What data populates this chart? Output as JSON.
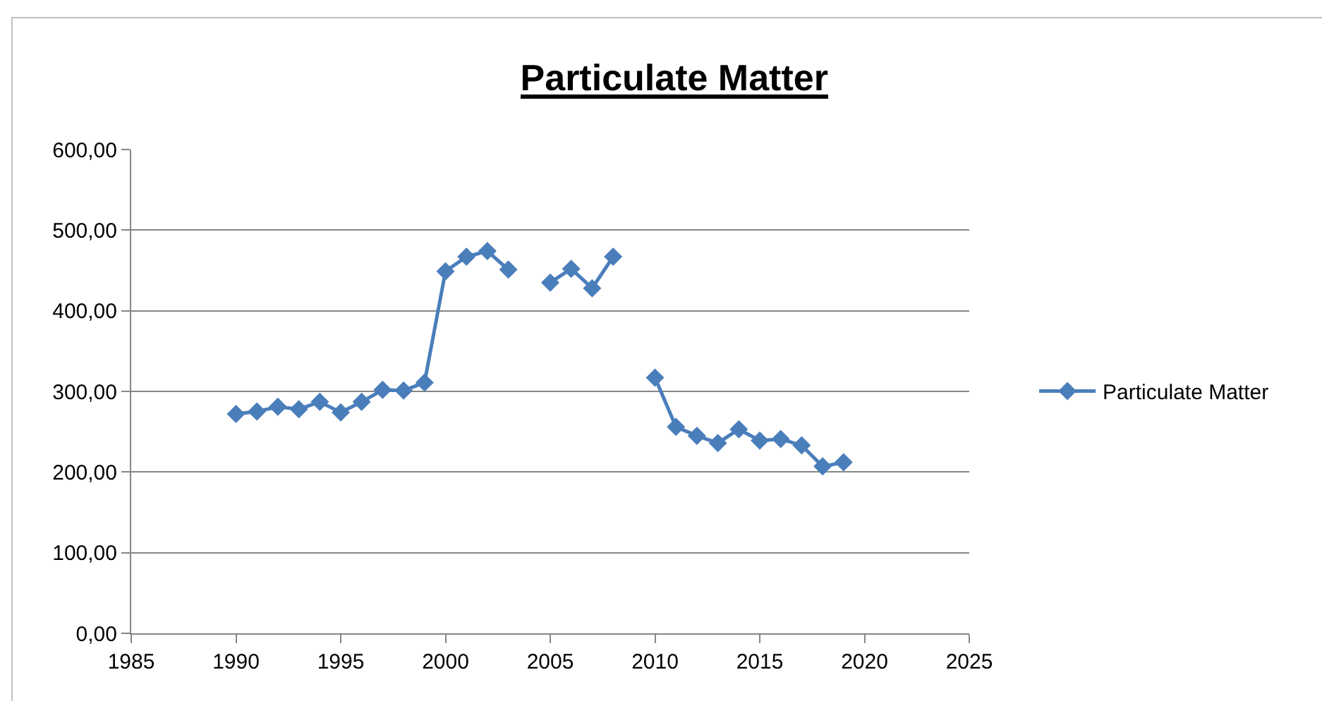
{
  "chart_data": {
    "type": "line",
    "title": "Particulate Matter",
    "x": [
      1990,
      1991,
      1992,
      1993,
      1994,
      1995,
      1996,
      1997,
      1998,
      1999,
      2000,
      2001,
      2002,
      2003,
      2004,
      2005,
      2006,
      2007,
      2008,
      2009,
      2010,
      2011,
      2012,
      2013,
      2014,
      2015,
      2016,
      2017,
      2018,
      2019
    ],
    "series": [
      {
        "name": "Particulate Matter",
        "color": "#4a7ebb",
        "values": [
          272,
          275,
          281,
          278,
          287,
          274,
          287,
          302,
          301,
          311,
          449,
          467,
          474,
          451,
          null,
          435,
          452,
          428,
          467,
          null,
          317,
          256,
          245,
          236,
          253,
          239,
          241,
          233,
          207,
          212
        ]
      }
    ],
    "xlim": [
      1985,
      2025
    ],
    "xticks": [
      1985,
      1990,
      1995,
      2000,
      2005,
      2010,
      2015,
      2020,
      2025
    ],
    "ylim": [
      0,
      600
    ],
    "yticks": [
      {
        "value": 0,
        "label": "0,00"
      },
      {
        "value": 100,
        "label": "100,00"
      },
      {
        "value": 200,
        "label": "200,00"
      },
      {
        "value": 300,
        "label": "300,00"
      },
      {
        "value": 400,
        "label": "400,00"
      },
      {
        "value": 500,
        "label": "500,00"
      },
      {
        "value": 600,
        "label": "600,00"
      }
    ],
    "grid": "y",
    "legend": "right",
    "marker": "diamond",
    "line_style": "solid"
  }
}
